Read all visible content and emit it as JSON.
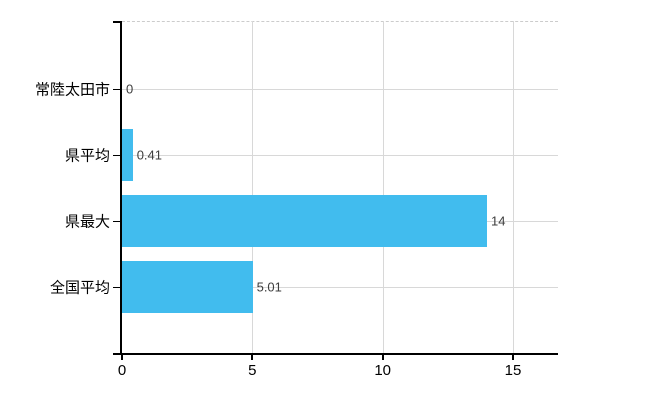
{
  "chart_data": {
    "type": "bar",
    "orientation": "horizontal",
    "title": "",
    "xlabel": "",
    "ylabel": "",
    "categories": [
      "常陸太田市",
      "県平均",
      "県最大",
      "全国平均"
    ],
    "values": [
      0,
      0.41,
      14,
      5.01
    ],
    "value_labels": [
      "0",
      "0.41",
      "14",
      "5.01"
    ],
    "x_tick_labels": [
      "0",
      "5",
      "10",
      "15"
    ],
    "x_tick_values": [
      0,
      5,
      10,
      15
    ],
    "xlim": [
      0,
      16.7
    ],
    "grid": true,
    "legend": false,
    "colors": {
      "bar": "#41bcee",
      "grid": "#d8d8d8",
      "axis": "#000000",
      "value_label": "#3d3d3d",
      "category_label": "#000000",
      "top_border": "#cccccc",
      "background": "#ffffff"
    }
  }
}
